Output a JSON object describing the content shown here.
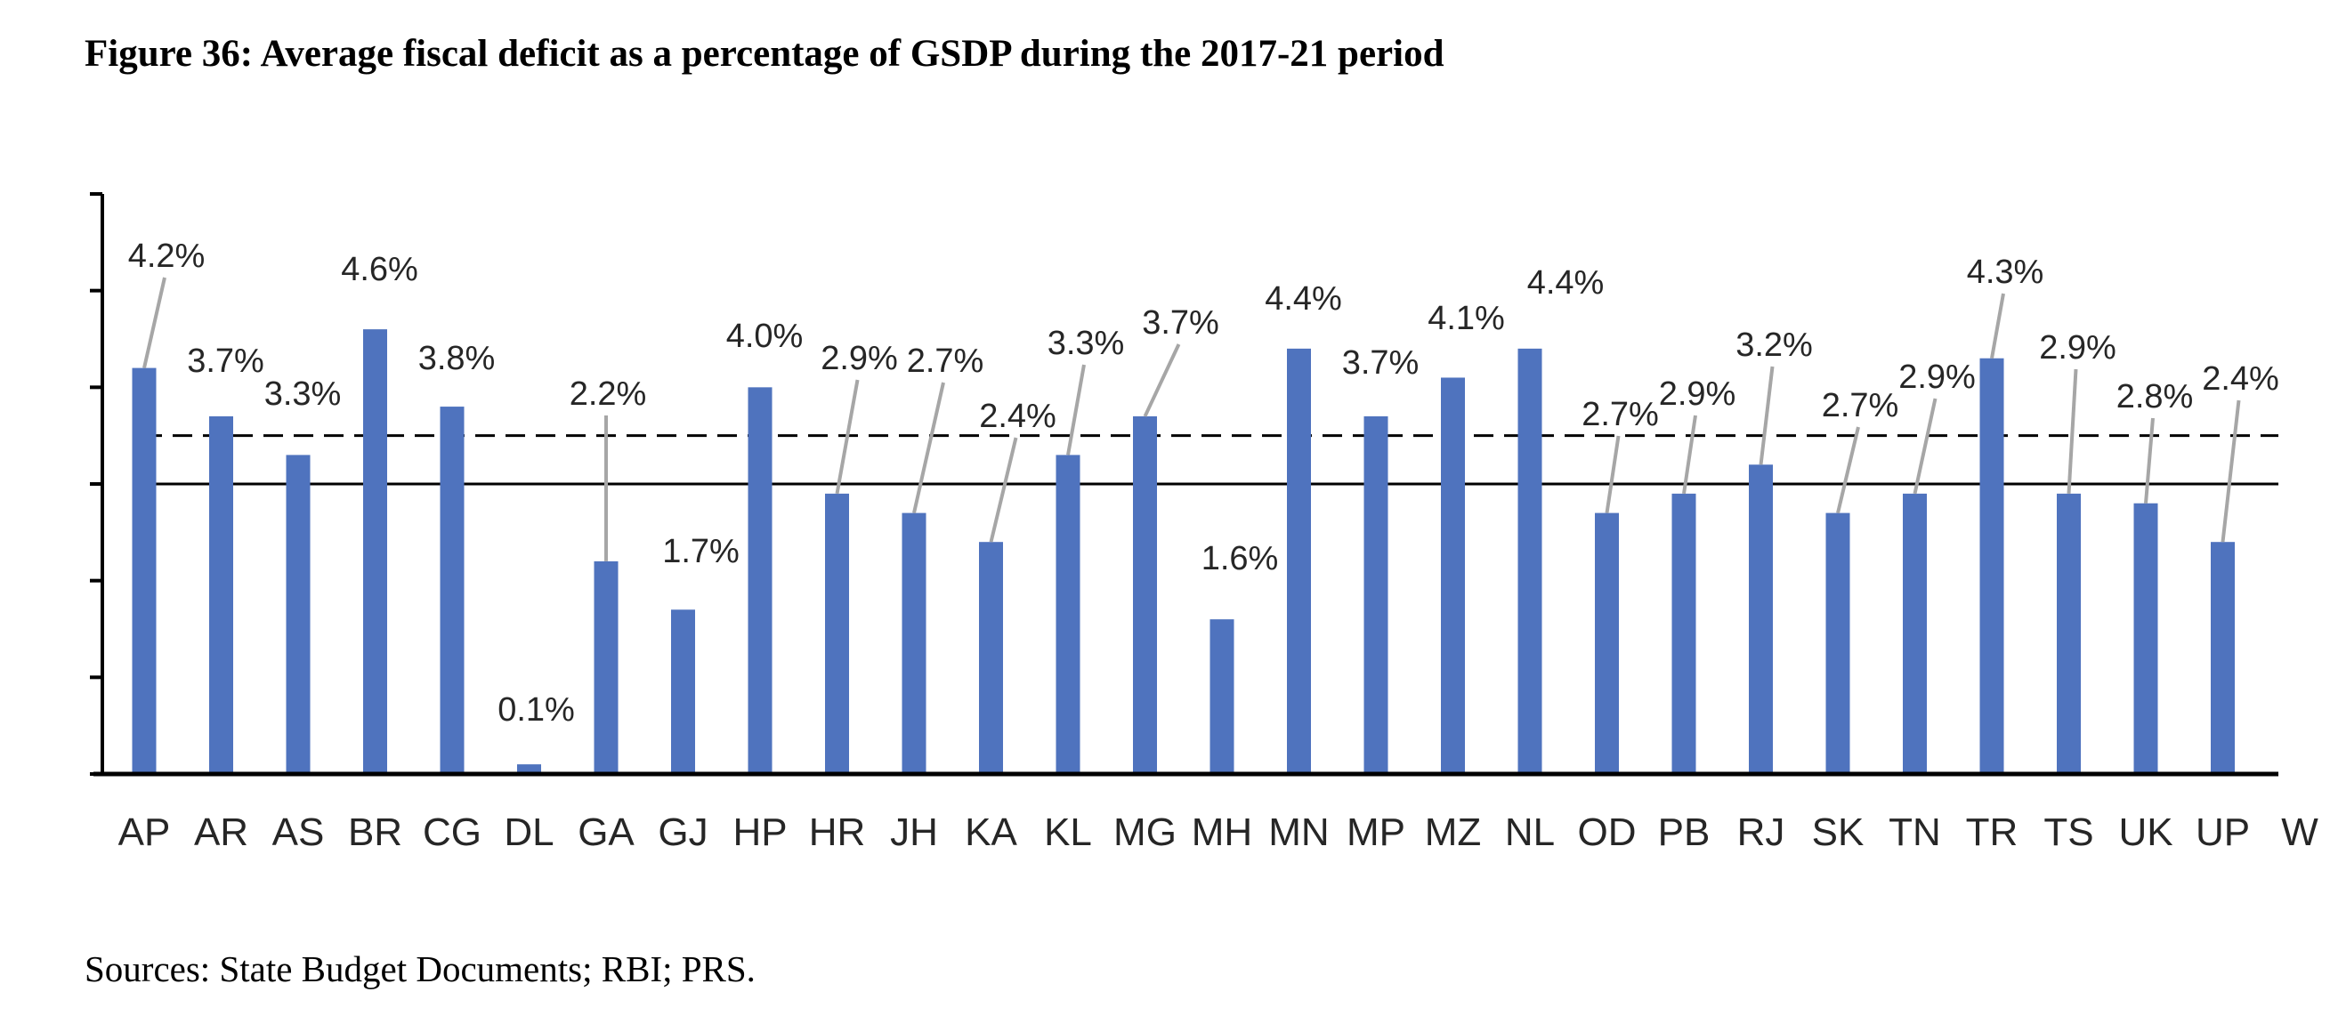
{
  "title": "Figure 36: Average fiscal deficit as a percentage of GSDP during the 2017-21 period",
  "source": "Sources: State Budget Documents; RBI; PRS.",
  "chart_data": {
    "type": "bar",
    "categories": [
      "AP",
      "AR",
      "AS",
      "BR",
      "CG",
      "DL",
      "GA",
      "GJ",
      "HP",
      "HR",
      "JH",
      "KA",
      "KL",
      "MG",
      "MH",
      "MN",
      "MP",
      "MZ",
      "NL",
      "OD",
      "PB",
      "RJ",
      "SK",
      "TN",
      "TR",
      "TS",
      "UK",
      "UP",
      "W"
    ],
    "values": [
      4.2,
      3.7,
      3.3,
      4.6,
      3.8,
      0.1,
      2.2,
      1.7,
      4.0,
      2.9,
      2.7,
      2.4,
      3.3,
      3.7,
      1.6,
      4.4,
      3.7,
      4.1,
      4.4,
      2.7,
      2.9,
      3.2,
      2.7,
      2.9,
      4.3,
      2.9,
      2.8,
      2.4,
      null
    ],
    "data_labels": [
      "4.2%",
      "3.7%",
      "3.3%",
      "4.6%",
      "3.8%",
      "0.1%",
      "2.2%",
      "1.7%",
      "4.0%",
      "2.9%",
      "2.7%",
      "2.4%",
      "3.3%",
      "3.7%",
      "1.6%",
      "4.4%",
      "3.7%",
      "4.1%",
      "4.4%",
      "2.7%",
      "2.9%",
      "3.2%",
      "2.7%",
      "2.9%",
      "4.3%",
      "2.9%",
      "2.8%",
      "2.4%",
      ""
    ],
    "reference_lines": [
      {
        "style": "dashed",
        "value": 3.5
      },
      {
        "style": "solid",
        "value": 3.0
      }
    ],
    "ylim": [
      0,
      6
    ],
    "bar_color": "#4f73be",
    "xlabel": "",
    "ylabel": ""
  }
}
